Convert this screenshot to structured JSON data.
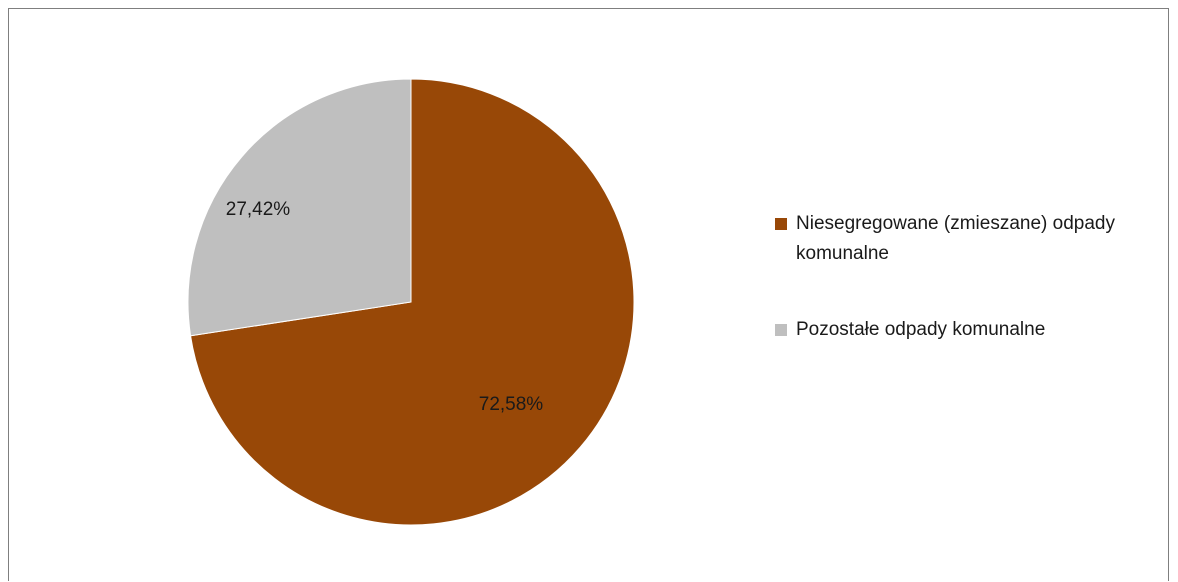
{
  "chart_data": {
    "type": "pie",
    "title": "",
    "slices": [
      {
        "label": "Niesegregowane (zmieszane) odpady komunalne",
        "value": 72.58,
        "display": "72,58%",
        "color": "#984807"
      },
      {
        "label": "Pozostałe odpady komunalne",
        "value": 27.42,
        "display": "27,42%",
        "color": "#bfbfbf"
      }
    ],
    "legend_position": "right",
    "start_angle": "12 o'clock",
    "direction": "clockwise"
  }
}
